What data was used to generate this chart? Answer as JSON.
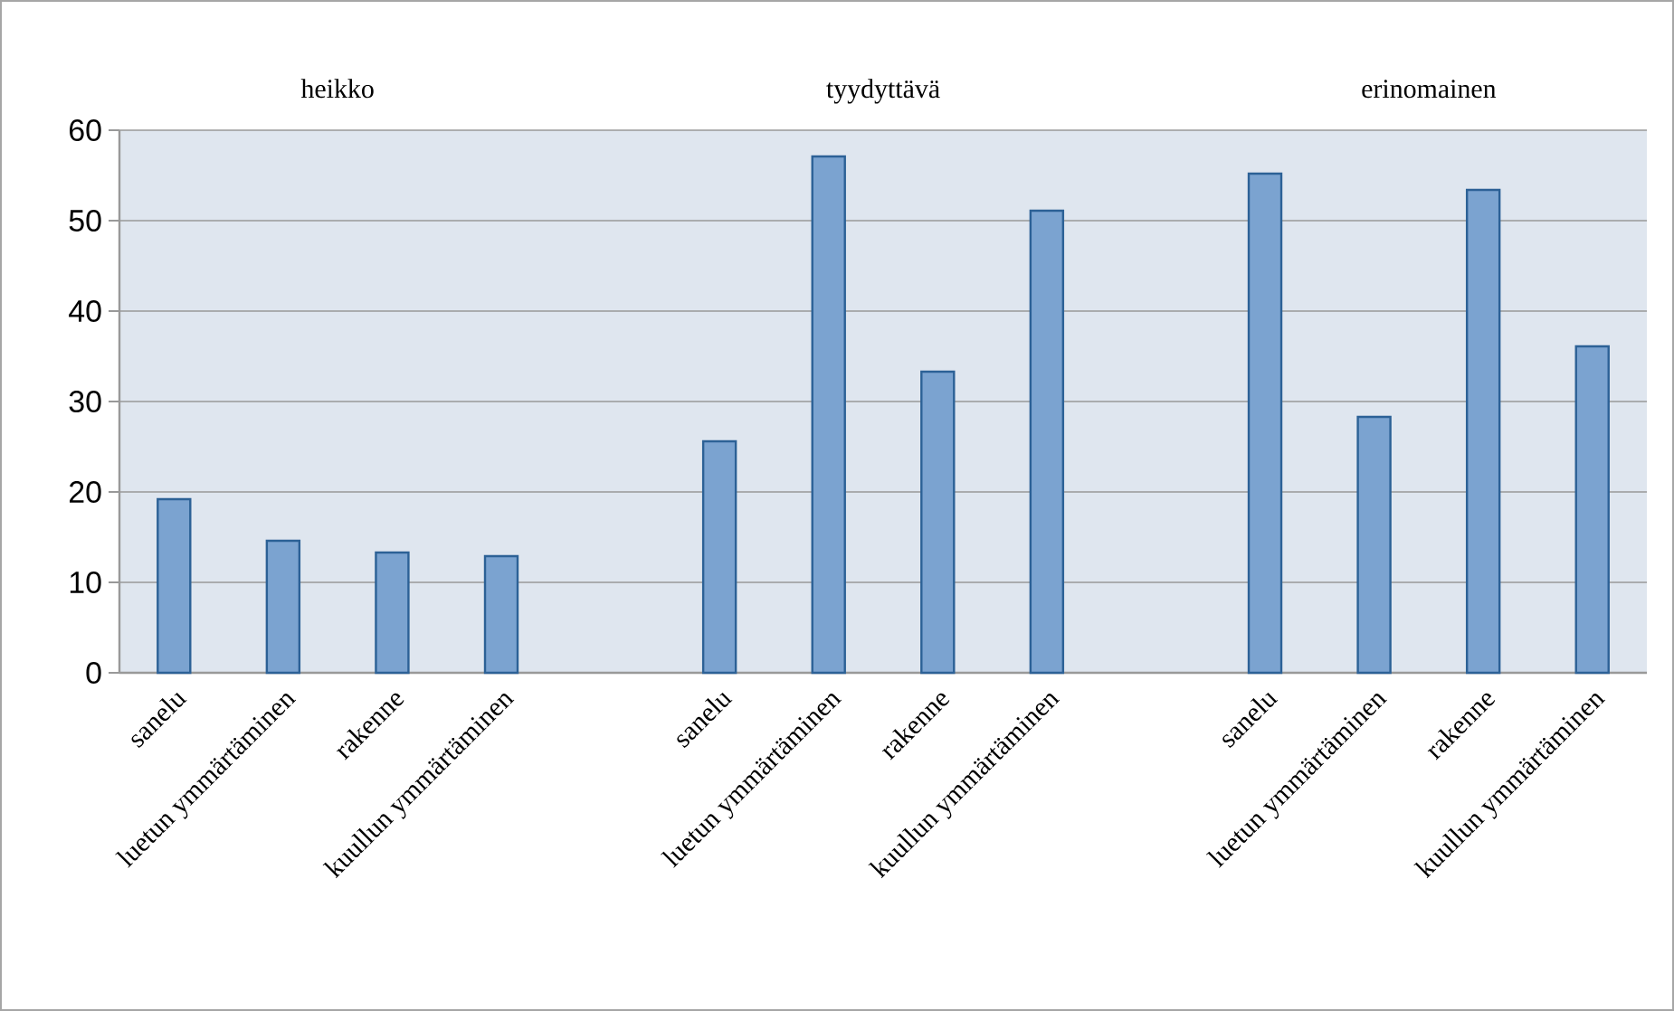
{
  "chart_data": {
    "type": "bar",
    "categories": [
      "sanelu",
      "luetun ymmärtäminen",
      "rakenne",
      "kuullun ymmärtäminen",
      null,
      "sanelu",
      "luetun ymmärtäminen",
      "rakenne",
      "kuullun ymmärtäminen",
      null,
      "sanelu",
      "luetun ymmärtäminen",
      "rakenne",
      "kuullun ymmärtäminen"
    ],
    "values": [
      19.2,
      14.6,
      13.3,
      12.9,
      null,
      25.6,
      57.1,
      33.3,
      51.1,
      null,
      55.2,
      28.3,
      53.4,
      36.1
    ],
    "color": "#7ba3d0",
    "ylim": [
      0,
      60
    ],
    "yticks": [
      0,
      10,
      20,
      30,
      40,
      50,
      60
    ],
    "grid": "y",
    "annotations": [
      "heikko",
      "tyydyttävä",
      "erinomainen"
    ]
  }
}
